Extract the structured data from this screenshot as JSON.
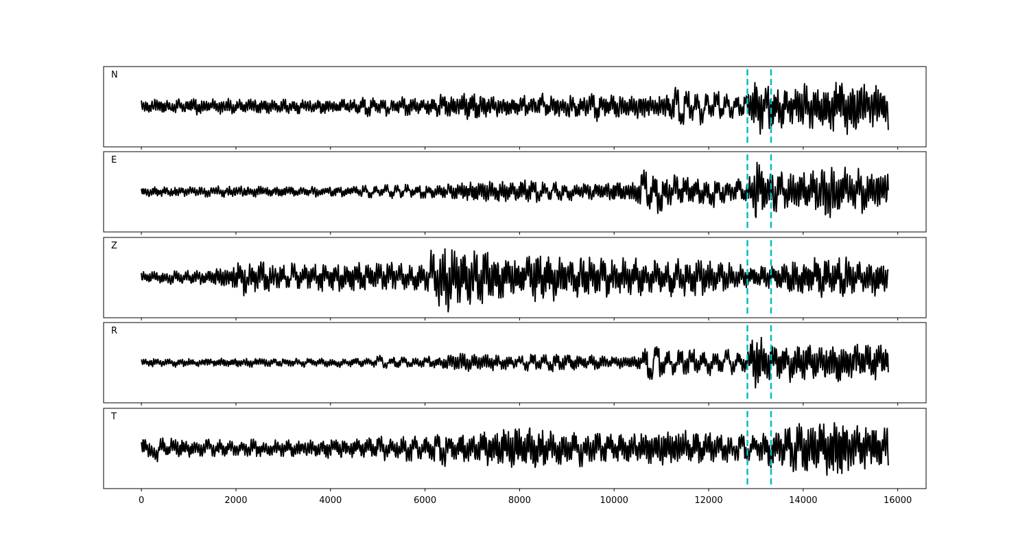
{
  "chart_data": {
    "type": "line",
    "title": "",
    "xlabel": "",
    "ylabel": "",
    "xlim": [
      -800,
      16600
    ],
    "ylim": [
      -1,
      1
    ],
    "grid": false,
    "x_ticks": [
      0,
      2000,
      4000,
      6000,
      8000,
      10000,
      12000,
      14000,
      16000
    ],
    "x_tick_labels": [
      "0",
      "2000",
      "4000",
      "6000",
      "8000",
      "10000",
      "12000",
      "14000",
      "16000"
    ],
    "sample_count": 15800,
    "marker_lines": [
      12820,
      13320
    ],
    "marker_color": "#00BFBF",
    "trace_color": "#000000",
    "panels": [
      {
        "label": "N",
        "envelope": [
          [
            0,
            0.18
          ],
          [
            2000,
            0.2
          ],
          [
            4000,
            0.18
          ],
          [
            6000,
            0.22
          ],
          [
            6800,
            0.35
          ],
          [
            8000,
            0.25
          ],
          [
            10000,
            0.3
          ],
          [
            11000,
            0.35
          ],
          [
            12000,
            0.28
          ],
          [
            12800,
            0.2
          ],
          [
            13000,
            0.8
          ],
          [
            13300,
            0.55
          ],
          [
            14000,
            0.5
          ],
          [
            15000,
            0.7
          ],
          [
            15800,
            0.5
          ]
        ],
        "samples": [
          0.05,
          -0.08,
          0.12,
          0.15,
          -0.05,
          0.1,
          -0.15,
          0.2,
          -0.1,
          0.08,
          0.18,
          -0.2,
          0.1,
          -0.05,
          0.15,
          -0.12,
          0.05,
          0.2,
          -0.18,
          0.08,
          -0.1,
          0.12,
          0.05,
          -0.15,
          0.2,
          -0.08,
          0.1,
          -0.12,
          0.15,
          -0.05,
          0.08,
          -0.18,
          0.12,
          0.05,
          -0.1,
          0.15,
          -0.2,
          0.1,
          0.05,
          -0.08,
          0.18,
          -0.1,
          0.12,
          -0.15,
          0.3,
          -0.35,
          0.25,
          -0.1,
          0.2,
          -0.3,
          0.15,
          -0.05,
          0.25,
          -0.2,
          0.1,
          -0.15,
          0.2,
          -0.1,
          0.15,
          -0.25,
          0.35,
          -0.2,
          0.15,
          -0.1,
          0.25,
          -0.15,
          0.3,
          -0.25,
          0.1,
          -0.05,
          0.2,
          -0.15,
          0.1,
          -0.2,
          0.15,
          -0.1,
          0.3,
          -0.2,
          0.15,
          -0.05,
          0.4,
          -0.25,
          0.2,
          -0.1,
          0.15,
          -0.2,
          0.25,
          -0.3,
          0.2,
          -0.15,
          0.35,
          -0.5,
          0.2,
          -0.1,
          0.3,
          -0.2,
          0.15,
          -0.1,
          0.05,
          -0.08,
          0.1,
          -0.05,
          0.15,
          -0.1,
          0.05,
          0.1,
          -0.2,
          0.8,
          -0.9,
          0.6,
          -0.5,
          0.4,
          -0.8,
          0.5,
          -0.3,
          0.6,
          -0.4,
          0.5,
          -0.6,
          0.4,
          -0.3,
          0.5,
          -0.2,
          0.3,
          -0.4,
          0.6,
          -0.3,
          0.2,
          -0.5,
          0.4,
          -0.2,
          0.3,
          -0.1,
          0.55,
          -0.6,
          0.4,
          -0.3,
          0.2,
          -0.45,
          0.35,
          0.65,
          -0.5,
          0.3,
          -0.4,
          0.2,
          0.35,
          -0.3,
          0.25,
          0.15,
          -0.2,
          -0.7
        ]
      },
      {
        "label": "E",
        "envelope": [
          [
            0,
            0.12
          ],
          [
            2000,
            0.15
          ],
          [
            4000,
            0.12
          ],
          [
            6000,
            0.15
          ],
          [
            6800,
            0.25
          ],
          [
            7800,
            0.3
          ],
          [
            9000,
            0.2
          ],
          [
            10000,
            0.25
          ],
          [
            11000,
            0.4
          ],
          [
            12000,
            0.3
          ],
          [
            12800,
            0.25
          ],
          [
            13000,
            0.85
          ],
          [
            13300,
            0.45
          ],
          [
            14000,
            0.5
          ],
          [
            14600,
            0.7
          ],
          [
            15000,
            0.5
          ],
          [
            15800,
            0.55
          ]
        ],
        "samples": [
          0.05,
          -0.1,
          0.08,
          -0.05,
          0.1,
          -0.12,
          0.05,
          0.08,
          -0.1,
          0.12,
          -0.05,
          0.1,
          -0.08,
          0.05,
          0.1,
          -0.15,
          0.08,
          -0.05,
          0.12,
          -0.1,
          0.05,
          -0.08,
          0.1,
          0.05,
          -0.12,
          0.08,
          -0.1,
          0.05,
          0.12,
          -0.08,
          0.1,
          -0.05,
          0.08,
          -0.12,
          0.05,
          0.1,
          -0.08,
          0.12,
          -0.1,
          0.05,
          0.15,
          -0.1,
          0.2,
          -0.25,
          0.15,
          -0.1,
          0.3,
          -0.2,
          0.25,
          -0.15,
          0.3,
          -0.1,
          0.2,
          -0.25,
          0.15,
          -0.2,
          0.1,
          -0.15,
          0.2,
          -0.1,
          0.15,
          -0.05,
          0.1,
          -0.15,
          0.2,
          -0.1,
          0.25,
          -0.2,
          0.15,
          -0.1,
          0.3,
          -0.25,
          0.2,
          -0.15,
          0.35,
          -0.4,
          0.3,
          -0.2,
          0.4,
          -0.3,
          0.2,
          -0.25,
          0.15,
          -0.1,
          0.2,
          -0.15,
          0.1,
          -0.05,
          0.15,
          -0.1,
          0.2,
          -0.15,
          0.1,
          0.05,
          -0.2,
          0.9,
          -0.6,
          0.4,
          -0.9,
          0.3,
          -0.2,
          0.5,
          -0.3,
          0.4,
          -0.2,
          0.3,
          -0.4,
          0.2,
          -0.5,
          0.4,
          -0.3,
          0.3,
          -0.2,
          0.5,
          -0.3,
          0.2,
          -0.4,
          0.6,
          -0.2,
          0.3,
          -0.5,
          0.75,
          -0.4,
          0.3,
          -0.2,
          0.4,
          -0.3,
          0.5,
          -0.4,
          0.2,
          -0.6,
          0.3,
          -0.5,
          0.6,
          0.2,
          -0.3,
          0.65,
          -0.5,
          0.3,
          -0.2,
          0.4,
          0.35,
          -0.1
        ]
      },
      {
        "label": "Z",
        "envelope": [
          [
            0,
            0.15
          ],
          [
            1500,
            0.2
          ],
          [
            2200,
            0.45
          ],
          [
            3000,
            0.3
          ],
          [
            4000,
            0.35
          ],
          [
            5000,
            0.35
          ],
          [
            6000,
            0.35
          ],
          [
            6400,
            0.85
          ],
          [
            7000,
            0.75
          ],
          [
            8000,
            0.5
          ],
          [
            8400,
            0.7
          ],
          [
            9000,
            0.5
          ],
          [
            10000,
            0.5
          ],
          [
            11000,
            0.45
          ],
          [
            12000,
            0.45
          ],
          [
            12800,
            0.3
          ],
          [
            13300,
            0.3
          ],
          [
            14000,
            0.5
          ],
          [
            15000,
            0.5
          ],
          [
            15800,
            0.4
          ]
        ],
        "samples": [
          0.1,
          -0.05,
          0.15,
          -0.1,
          0.05,
          -0.15,
          0.12,
          -0.05,
          0.1,
          -0.12,
          0.15,
          -0.1,
          0.08,
          -0.05,
          0.2,
          -0.15,
          0.1,
          -0.08,
          0.25,
          -0.5,
          0.3,
          -0.2,
          0.4,
          -0.3,
          0.2,
          -0.1,
          0.3,
          -0.4,
          0.5,
          -0.2,
          0.3,
          -0.1,
          0.25,
          -0.3,
          0.4,
          -0.2,
          0.3,
          -0.35,
          0.2,
          -0.25,
          0.35,
          -0.4,
          0.3,
          -0.2,
          0.4,
          -0.3,
          0.5,
          -0.2,
          0.3,
          -0.4,
          0.2,
          -0.3,
          0.35,
          -0.25,
          0.9,
          -0.6,
          0.5,
          -0.85,
          0.6,
          -0.4,
          0.7,
          -0.75,
          0.5,
          -0.6,
          0.8,
          -0.4,
          0.3,
          -0.5,
          0.4,
          -0.2,
          0.3,
          -0.35,
          0.85,
          -0.5,
          0.6,
          -0.4,
          0.5,
          -0.6,
          0.3,
          -0.2,
          0.4,
          -0.5,
          0.3,
          -0.25,
          0.45,
          -0.3,
          0.5,
          -0.4,
          0.3,
          -0.2,
          0.4,
          -0.3,
          0.6,
          -0.5,
          0.3,
          -0.35,
          0.45,
          -0.2,
          0.3,
          -0.6,
          0.4,
          -0.3,
          0.2,
          -0.4,
          0.5,
          -0.35,
          0.3,
          -0.2,
          0.4,
          -0.3,
          0.2,
          -0.15,
          0.3,
          -0.2,
          0.25,
          -0.1,
          0.2,
          -0.15,
          0.3,
          -0.2,
          0.4,
          -0.35,
          0.2,
          -0.5,
          0.3,
          -0.2,
          0.5,
          -0.4,
          0.3,
          -0.2,
          0.4,
          -0.45,
          0.3,
          -0.2,
          0.5,
          -0.35,
          0.3,
          -0.4,
          0.2,
          -0.1,
          0.05
        ]
      },
      {
        "label": "R",
        "envelope": [
          [
            0,
            0.1
          ],
          [
            2000,
            0.12
          ],
          [
            4000,
            0.1
          ],
          [
            5000,
            0.12
          ],
          [
            6000,
            0.12
          ],
          [
            6800,
            0.25
          ],
          [
            7500,
            0.2
          ],
          [
            8000,
            0.15
          ],
          [
            9000,
            0.2
          ],
          [
            10000,
            0.15
          ],
          [
            11000,
            0.3
          ],
          [
            12000,
            0.25
          ],
          [
            12800,
            0.2
          ],
          [
            13000,
            0.85
          ],
          [
            13300,
            0.45
          ],
          [
            14000,
            0.5
          ],
          [
            15000,
            0.45
          ],
          [
            15800,
            0.45
          ]
        ],
        "samples": [
          0.05,
          -0.08,
          0.1,
          -0.05,
          0.08,
          -0.1,
          0.05,
          -0.05,
          0.08,
          -0.1,
          0.05,
          0.08,
          -0.05,
          0.1,
          -0.08,
          0.05,
          -0.05,
          0.08,
          -0.1,
          0.05,
          0.08,
          -0.05,
          0.1,
          -0.08,
          0.05,
          -0.05,
          0.08,
          -0.1,
          0.12,
          -0.05,
          0.1,
          -0.08,
          0.05,
          -0.1,
          0.08,
          -0.05,
          0.1,
          -0.08,
          0.12,
          -0.05,
          0.3,
          -0.2,
          0.15,
          -0.1,
          0.2,
          -0.15,
          0.1,
          -0.08,
          0.2,
          -0.15,
          0.1,
          -0.12,
          0.15,
          -0.1,
          0.2,
          -0.15,
          0.1,
          -0.08,
          0.15,
          -0.1,
          0.2,
          -0.15,
          0.1,
          -0.05,
          0.2,
          -0.25,
          0.3,
          -0.2,
          0.25,
          -0.3,
          0.2,
          -0.15,
          0.3,
          -0.2,
          0.15,
          -0.1,
          0.2,
          -0.15,
          0.1,
          -0.05,
          0.15,
          -0.1,
          0.08,
          0.05,
          -0.1,
          0.5,
          -0.9,
          0.85,
          -0.4,
          0.3,
          -0.5,
          0.4,
          -0.3,
          0.5,
          -0.2,
          0.3,
          -0.4,
          0.2,
          -0.3,
          0.6,
          -0.4,
          0.3,
          -0.2,
          0.4,
          -0.35,
          0.3,
          -0.2,
          0.4,
          -0.3,
          0.5,
          -0.45,
          0.3,
          -0.2,
          0.35,
          -0.3,
          0.4,
          -0.25,
          0.3,
          -0.4,
          0.2,
          -0.3,
          0.45,
          -0.2,
          0.3,
          -0.35,
          0.4,
          0.3,
          -0.3
        ]
      },
      {
        "label": "T",
        "envelope": [
          [
            0,
            0.25
          ],
          [
            1000,
            0.25
          ],
          [
            2000,
            0.2
          ],
          [
            4000,
            0.25
          ],
          [
            6000,
            0.3
          ],
          [
            7000,
            0.35
          ],
          [
            8000,
            0.6
          ],
          [
            9000,
            0.4
          ],
          [
            10000,
            0.35
          ],
          [
            11000,
            0.5
          ],
          [
            12000,
            0.4
          ],
          [
            12800,
            0.25
          ],
          [
            13300,
            0.45
          ],
          [
            14000,
            0.55
          ],
          [
            14700,
            0.85
          ],
          [
            15000,
            0.6
          ],
          [
            15800,
            0.5
          ]
        ],
        "samples": [
          0.2,
          -0.15,
          -0.5,
          0.3,
          -0.2,
          0.25,
          -0.1,
          0.15,
          -0.2,
          0.1,
          -0.15,
          0.3,
          -0.2,
          0.15,
          -0.1,
          0.2,
          -0.15,
          0.1,
          -0.2,
          0.25,
          -0.15,
          0.1,
          -0.2,
          0.15,
          -0.1,
          0.2,
          -0.15,
          0.1,
          -0.05,
          0.15,
          -0.2,
          0.1,
          -0.15,
          0.2,
          -0.1,
          0.15,
          -0.2,
          0.25,
          -0.15,
          0.3,
          -0.2,
          0.35,
          -0.3,
          0.2,
          -0.15,
          0.25,
          -0.4,
          0.35,
          -0.25,
          0.3,
          -0.2,
          0.6,
          -0.7,
          0.4,
          -0.3,
          0.25,
          -0.35,
          0.3,
          -0.2,
          0.4,
          -0.3,
          0.2,
          -0.25,
          0.35,
          -0.3,
          0.25,
          -0.2,
          0.3,
          -0.4,
          0.3,
          -0.2,
          0.5,
          -0.4,
          0.3,
          -0.2,
          0.4,
          -0.5,
          0.3,
          -0.2,
          0.45,
          -0.3,
          0.35,
          -0.25,
          0.3,
          -0.2,
          0.25,
          -0.15,
          0.2,
          -0.1,
          0.15,
          -0.2,
          0.25,
          -0.1,
          0.05,
          0.4,
          -0.35,
          0.25,
          -0.3,
          0.35,
          -0.2,
          0.3,
          -0.4,
          0.2,
          -0.3,
          0.5,
          -0.4,
          0.3,
          -0.2,
          0.4,
          -0.5,
          0.3,
          -0.3,
          0.55,
          -0.7,
          0.75,
          -0.5,
          0.4,
          -0.3,
          0.5,
          -0.4,
          0.3,
          -0.5,
          0.4,
          -0.2,
          0.35,
          -0.3,
          0.45,
          0.2,
          -0.15,
          0.55,
          -0.2
        ]
      }
    ]
  }
}
